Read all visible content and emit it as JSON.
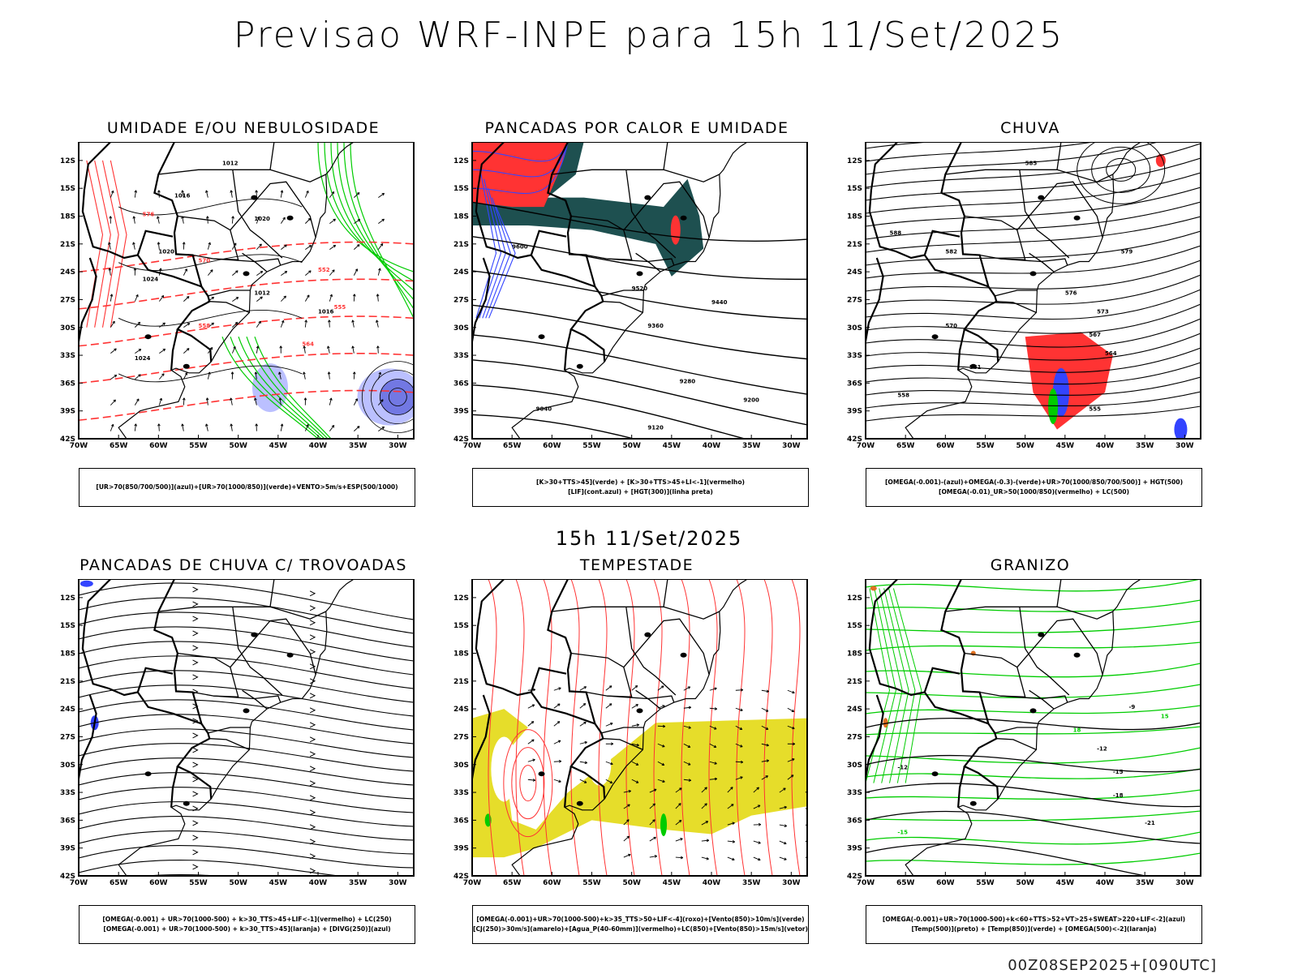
{
  "header": {
    "title": "Previsao WRF-INPE  para 15h 11/Set/2025",
    "mid_time": "15h 11/Set/2025",
    "footer": "00Z08SEP2025+[090UTC]"
  },
  "axes": {
    "lat_ticks": [
      "12S",
      "15S",
      "18S",
      "21S",
      "24S",
      "27S",
      "30S",
      "33S",
      "36S",
      "39S",
      "42S"
    ],
    "lon_ticks": [
      "70W",
      "65W",
      "60W",
      "55W",
      "50W",
      "45W",
      "40W",
      "35W",
      "30W"
    ]
  },
  "colors": {
    "green": "#00cc00",
    "red": "#ff3333",
    "blue": "#3344ff",
    "lightblue": "#aab0ff",
    "teal": "#1e5050",
    "yellow": "#e6dd2a",
    "orange": "#e07020"
  },
  "panels": [
    {
      "title": "UMIDADE E/OU NEBULOSIDADE",
      "legend": [
        "[UR>70(850/700/500)](azul)+[UR>70(1000/850)](verde)+VENTO>5m/s+ESP(500/1000)"
      ],
      "contour_labels": [
        "1012",
        "1016",
        "1020",
        "1024",
        "552",
        "555",
        "558",
        "564",
        "570",
        "576"
      ]
    },
    {
      "title": "PANCADAS POR CALOR E UMIDADE",
      "legend": [
        "[K>30+TTS>45](verde) + [K>30+TTS>45+LI<-1](vermelho)",
        "[LIF](cont.azul) + [HGT(300)](linha preta)"
      ],
      "contour_labels": [
        "9600",
        "9520",
        "9440",
        "9360",
        "9280",
        "9200",
        "9120",
        "9040"
      ]
    },
    {
      "title": "CHUVA",
      "legend": [
        "[OMEGA(-0.001)-(azul)+OMEGA(-0.3)-(verde)+UR>70(1000/850/700/500)] + HGT(500)",
        "[OMEGA(-0.01)_UR>50(1000/850)(vermelho) + LC(500)"
      ],
      "contour_labels": [
        "585",
        "588",
        "582",
        "579",
        "576",
        "573",
        "570",
        "567",
        "564",
        "561",
        "558",
        "555"
      ]
    },
    {
      "title": "PANCADAS DE CHUVA C/ TROVOADAS",
      "legend": [
        "[OMEGA(-0.001) + UR>70(1000-500) + k>30_TTS>45+LIF<-1](vermelho) + LC(250)",
        "[OMEGA(-0.001) + UR>70(1000-500) + k>30_TTS>45](laranja) + [DIVG(250)](azul)"
      ],
      "contour_labels": []
    },
    {
      "title": "TEMPESTADE",
      "legend": [
        "[OMEGA(-0.001)+UR>70(1000-500)+k>35_TTS>50+LIF<-4](roxo)+[Vento(850)>10m/s](verde)",
        "[CJ(250)>30m/s](amarelo)+[Agua_P(40-60mm)](vermelho)+LC(850)+[Vento(850)>15m/s](vetor)"
      ],
      "contour_labels": []
    },
    {
      "title": "GRANIZO",
      "legend": [
        "[OMEGA(-0.001)+UR>70(1000-500)+k<60+TTS>52+VT>25+SWEAT>220+LIF<-2](azul)",
        "[Temp(500)](preto) + [Temp(850)](verde) + [OMEGA(500)<-2](laranja)"
      ],
      "contour_labels": [
        "-9",
        "-12",
        "-12",
        "-15",
        "-18",
        "-21",
        "15",
        "18",
        "-15"
      ]
    }
  ]
}
